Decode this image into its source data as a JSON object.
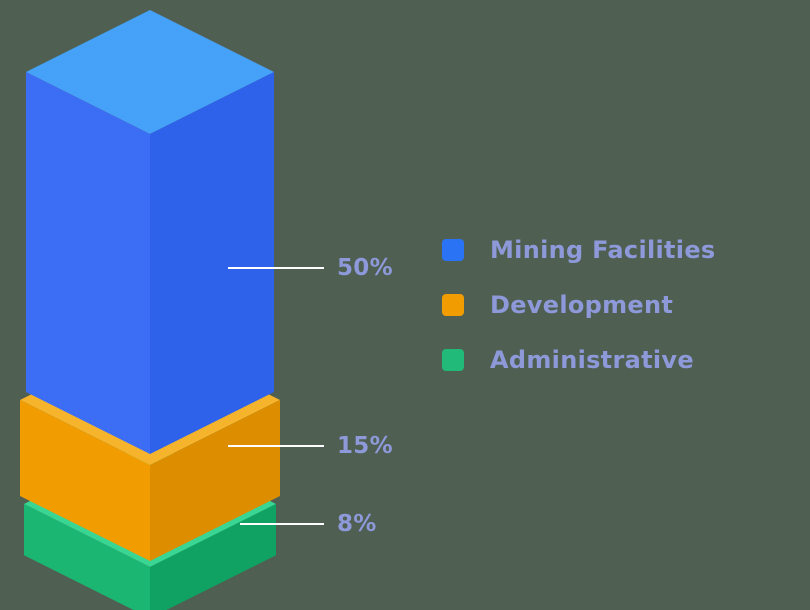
{
  "background_color": "#4f5f52",
  "chart_data": {
    "type": "bar",
    "subtype": "isometric-3d-stacked-column",
    "title": "",
    "orientation": "vertical",
    "legend_position": "right",
    "grid": false,
    "leader_line_color": "#ffffff",
    "value_label_color": "#8e99da",
    "categories": [
      "Mining Facilities",
      "Development",
      "Administrative"
    ],
    "values": [
      50,
      15,
      8
    ],
    "segments": [
      {
        "label": "Mining Facilities",
        "value": 50,
        "display": "50%",
        "front_color": "#3c6ef5",
        "side_color": "#2f62ea",
        "top_color": "#45a2f8"
      },
      {
        "label": "Development",
        "value": 15,
        "display": "15%",
        "front_color": "#f19d02",
        "side_color": "#dd8e00",
        "top_color": "#f5b42c"
      },
      {
        "label": "Administrative",
        "value": 8,
        "display": "8%",
        "front_color": "#1cb673",
        "side_color": "#0fa263",
        "top_color": "#38d593"
      }
    ]
  },
  "legend": {
    "items": [
      {
        "label": "Mining Facilities",
        "color": "#2a73f4"
      },
      {
        "label": "Development",
        "color": "#f19d02"
      },
      {
        "label": "Administrative",
        "color": "#22ba78"
      }
    ]
  }
}
